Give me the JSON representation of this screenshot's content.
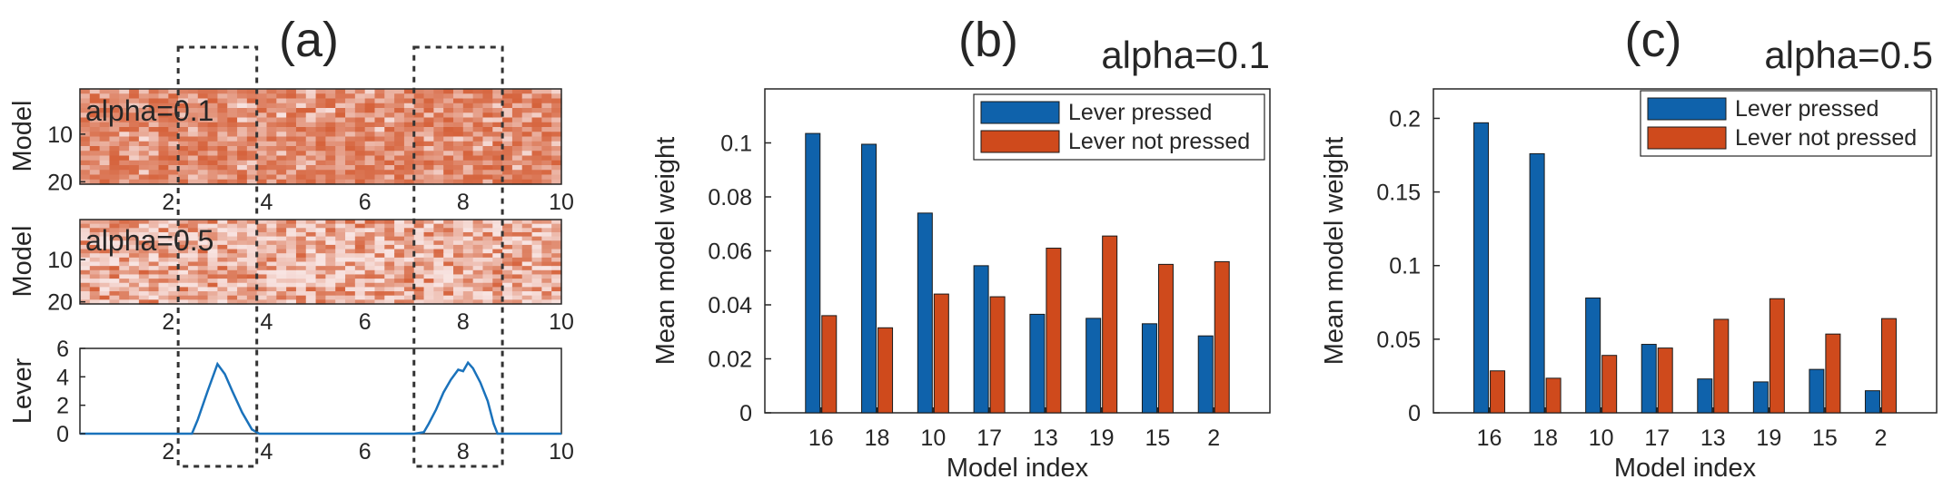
{
  "colors": {
    "pressed": "#0f62ab",
    "not_pressed": "#cf4a1c",
    "heat_low": "#f8e4e2",
    "heat_high": "#cf4a1c",
    "lever_line": "#1a72bb"
  },
  "chart_data": [
    {
      "type": "heatmap",
      "panel": "(a)",
      "label": "alpha=0.1",
      "ylabel": "Model",
      "yticks": [
        "10",
        "20"
      ],
      "xticks": [
        "2",
        "4",
        "6",
        "8",
        "10"
      ],
      "xlim": [
        0.2,
        10
      ],
      "rows": 20,
      "cols": 49,
      "seed": 7,
      "concentration": 0.45,
      "values": "individual cell intensities are not legible; pattern only"
    },
    {
      "type": "heatmap",
      "panel": "(a)",
      "label": "alpha=0.5",
      "ylabel": "Model",
      "yticks": [
        "10",
        "20"
      ],
      "xticks": [
        "2",
        "4",
        "6",
        "8",
        "10"
      ],
      "xlim": [
        0.2,
        10
      ],
      "rows": 20,
      "cols": 49,
      "seed": 19,
      "concentration": 1.6,
      "values": "individual cell intensities are not legible; pattern only"
    },
    {
      "type": "line",
      "panel": "(a)",
      "ylabel": "Lever",
      "yticks": [
        "0",
        "2",
        "4",
        "6"
      ],
      "xticks": [
        "2",
        "4",
        "6",
        "8",
        "10"
      ],
      "xlim": [
        0.2,
        10
      ],
      "ylim": [
        0,
        6
      ],
      "x": [
        0.2,
        1.0,
        2.0,
        2.48,
        2.6,
        2.8,
        3.0,
        3.15,
        3.3,
        3.5,
        3.7,
        3.85,
        4.0,
        5.0,
        6.0,
        7.0,
        7.2,
        7.3,
        7.45,
        7.6,
        7.75,
        7.9,
        8.0,
        8.1,
        8.2,
        8.35,
        8.5,
        8.62,
        8.7,
        9.0,
        10.0
      ],
      "y": [
        0.0,
        0.0,
        0.0,
        0.0,
        1.0,
        3.0,
        4.9,
        4.2,
        3.0,
        1.5,
        0.3,
        0.0,
        0.0,
        0.0,
        0.0,
        0.0,
        0.1,
        0.7,
        1.7,
        2.9,
        3.8,
        4.5,
        4.4,
        5.0,
        4.6,
        3.6,
        2.3,
        0.7,
        0.0,
        0.0,
        0.0
      ],
      "highlight_windows": [
        [
          2.2,
          3.8
        ],
        [
          7.0,
          8.8
        ]
      ]
    },
    {
      "type": "bar",
      "panel": "(b)",
      "title": "alpha=0.1",
      "xlabel": "Model index",
      "ylabel": "Mean model weight",
      "categories": [
        "16",
        "18",
        "10",
        "17",
        "13",
        "19",
        "15",
        "2"
      ],
      "ylim": [
        0,
        0.12
      ],
      "yticks": [
        "0",
        "0.02",
        "0.04",
        "0.06",
        "0.08",
        "0.1"
      ],
      "series": [
        {
          "name": "Lever pressed",
          "values": [
            0.1035,
            0.0995,
            0.074,
            0.0545,
            0.0365,
            0.035,
            0.033,
            0.0285
          ]
        },
        {
          "name": "Lever not pressed",
          "values": [
            0.036,
            0.0315,
            0.044,
            0.043,
            0.061,
            0.0655,
            0.055,
            0.056
          ]
        }
      ],
      "legend": "top-right"
    },
    {
      "type": "bar",
      "panel": "(c)",
      "title": "alpha=0.5",
      "xlabel": "Model index",
      "ylabel": "Mean model weight",
      "categories": [
        "16",
        "18",
        "10",
        "17",
        "13",
        "19",
        "15",
        "2"
      ],
      "ylim": [
        0,
        0.22
      ],
      "yticks": [
        "0",
        "0.05",
        "0.1",
        "0.15",
        "0.2"
      ],
      "series": [
        {
          "name": "Lever pressed",
          "values": [
            0.197,
            0.176,
            0.078,
            0.0465,
            0.023,
            0.021,
            0.0295,
            0.015
          ]
        },
        {
          "name": "Lever not pressed",
          "values": [
            0.0285,
            0.0235,
            0.039,
            0.044,
            0.0635,
            0.0775,
            0.0535,
            0.064
          ]
        }
      ],
      "legend": "top-right"
    }
  ]
}
